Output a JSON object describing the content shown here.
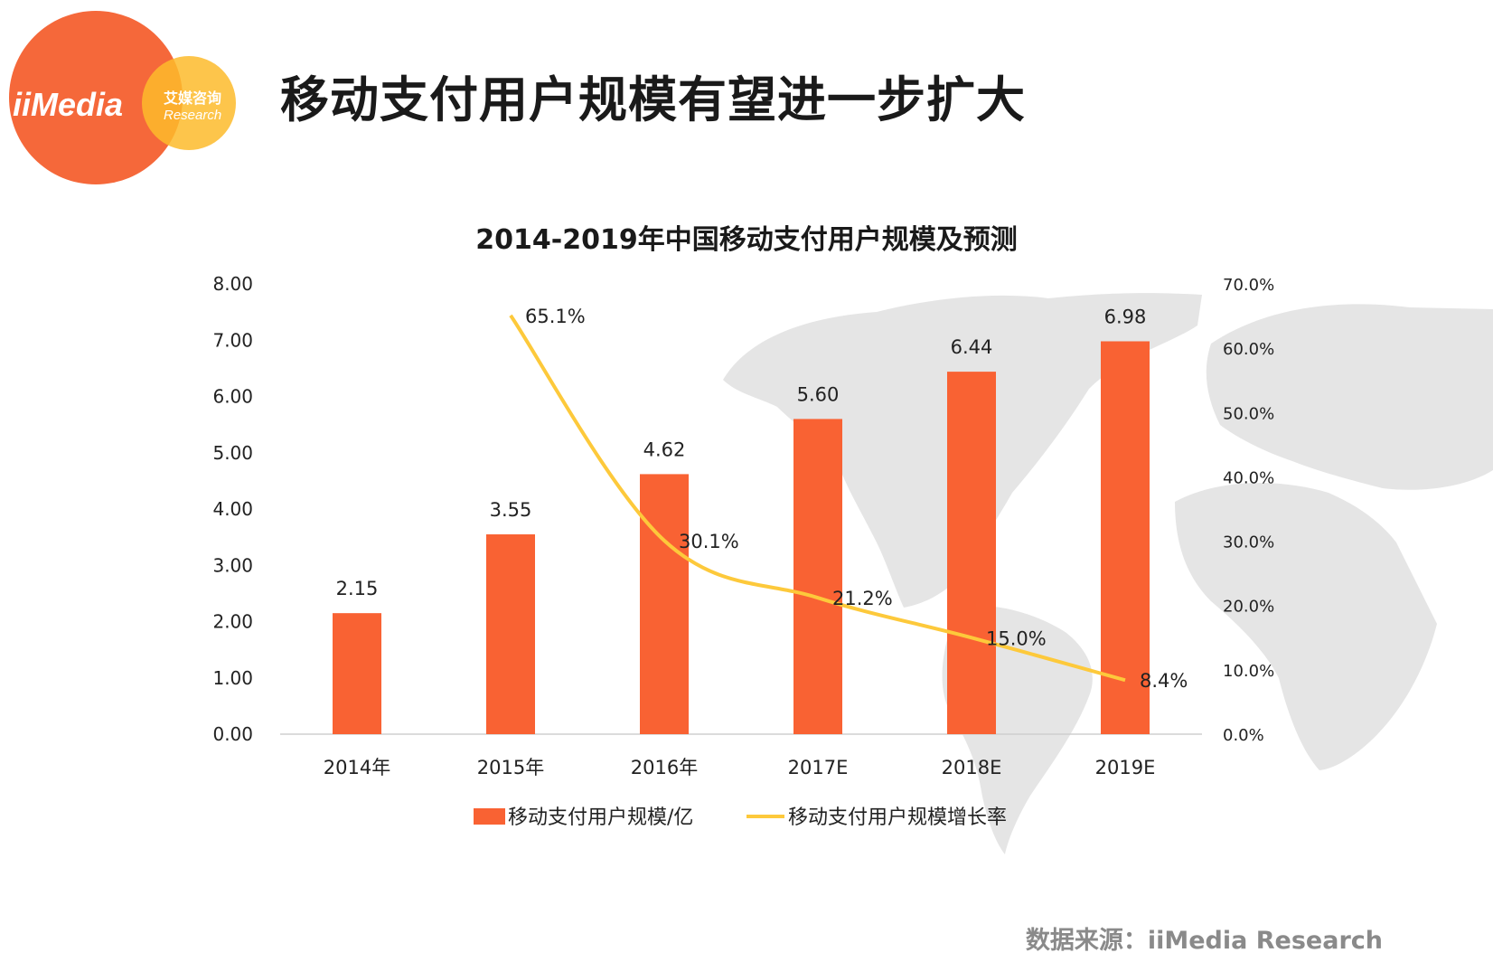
{
  "header": {
    "title": "移动支付用户规模有望进一步扩大",
    "logo": {
      "brand": "iiMedia",
      "cn": "艾媒咨询",
      "sub": "Research"
    }
  },
  "source": "数据来源：iiMedia Research",
  "colors": {
    "bar": "#f96233",
    "line": "#fdc93b",
    "logo_main": "#f5683a",
    "logo_accent": "#fdbb2c",
    "map": "#e5e5e5"
  },
  "chart_data": {
    "type": "bar",
    "title": "2014-2019年中国移动支付用户规模及预测",
    "categories": [
      "2014年",
      "2015年",
      "2016年",
      "2017E",
      "2018E",
      "2019E"
    ],
    "series": [
      {
        "name": "移动支付用户规模/亿",
        "type": "bar",
        "axis": "left",
        "values": [
          2.15,
          3.55,
          4.62,
          5.6,
          6.44,
          6.98
        ],
        "labels": [
          "2.15",
          "3.55",
          "4.62",
          "5.60",
          "6.44",
          "6.98"
        ]
      },
      {
        "name": "移动支付用户规模增长率",
        "type": "line",
        "axis": "right",
        "values": [
          null,
          65.1,
          30.1,
          21.2,
          15.0,
          8.4
        ],
        "labels": [
          "",
          "65.1%",
          "30.1%",
          "21.2%",
          "15.0%",
          "8.4%"
        ]
      }
    ],
    "ylim": [
      0,
      8
    ],
    "yticks": [
      "0.00",
      "1.00",
      "2.00",
      "3.00",
      "4.00",
      "5.00",
      "6.00",
      "7.00",
      "8.00"
    ],
    "y2lim": [
      0,
      70
    ],
    "y2ticks": [
      "0.0%",
      "10.0%",
      "20.0%",
      "30.0%",
      "40.0%",
      "50.0%",
      "60.0%",
      "70.0%"
    ],
    "grid": false,
    "legend": "bottom"
  }
}
